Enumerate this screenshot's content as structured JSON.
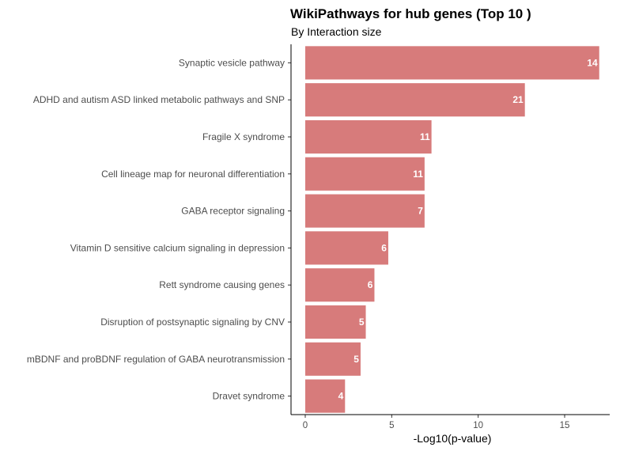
{
  "chart_data": {
    "type": "bar",
    "orientation": "horizontal",
    "title": "WikiPathways for hub genes (Top 10 )",
    "subtitle": "By Interaction size",
    "xlabel": "-Log10(p-value)",
    "ylabel": "",
    "xlim": [
      0,
      17.6
    ],
    "xticks": [
      0,
      5,
      10,
      15
    ],
    "grid": false,
    "bar_color": "#d77b7b",
    "categories": [
      "Synaptic vesicle pathway",
      "ADHD and autism ASD linked metabolic pathways and SNP",
      "Fragile X syndrome",
      "Cell lineage map for neuronal differentiation",
      "GABA receptor signaling",
      "Vitamin D sensitive calcium signaling in depression",
      "Rett syndrome causing genes",
      "Disruption of postsynaptic signaling by CNV",
      "mBDNF and proBDNF regulation of GABA neurotransmission",
      "Dravet syndrome"
    ],
    "values": [
      17.0,
      12.7,
      7.3,
      6.9,
      6.9,
      4.8,
      4.0,
      3.5,
      3.2,
      2.3
    ],
    "data_labels": [
      "14",
      "21",
      "11",
      "11",
      "7",
      "6",
      "6",
      "5",
      "5",
      "4"
    ]
  }
}
